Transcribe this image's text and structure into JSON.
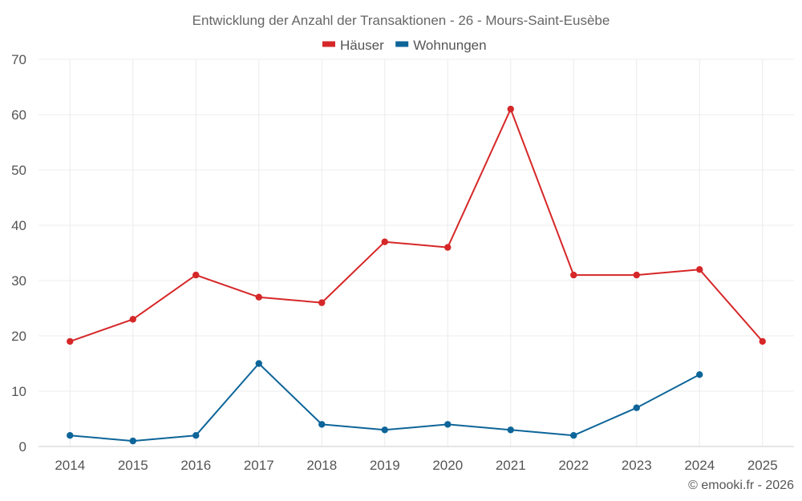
{
  "chart_data": {
    "type": "line",
    "title": "Entwicklung der Anzahl der Transaktionen - 26 - Mours-Saint-Eusèbe",
    "x": [
      "2014",
      "2015",
      "2016",
      "2017",
      "2018",
      "2019",
      "2020",
      "2021",
      "2022",
      "2023",
      "2024",
      "2025"
    ],
    "ylim": [
      0,
      70
    ],
    "yticks": [
      0,
      10,
      20,
      30,
      40,
      50,
      60,
      70
    ],
    "ytick_labels": [
      "0",
      "10",
      "20",
      "30",
      "40",
      "50",
      "60",
      "70"
    ],
    "grid": true,
    "legend_position": "top-center",
    "series": [
      {
        "name": "Häuser",
        "color": "#d62728",
        "values": [
          19,
          23,
          31,
          27,
          26,
          37,
          36,
          61,
          31,
          31,
          32,
          19
        ]
      },
      {
        "name": "Wohnungen",
        "color": "#0d6599",
        "values": [
          2,
          1,
          2,
          15,
          4,
          3,
          4,
          3,
          2,
          7,
          13,
          null
        ]
      }
    ]
  },
  "credit": "© emooki.fr - 2026"
}
